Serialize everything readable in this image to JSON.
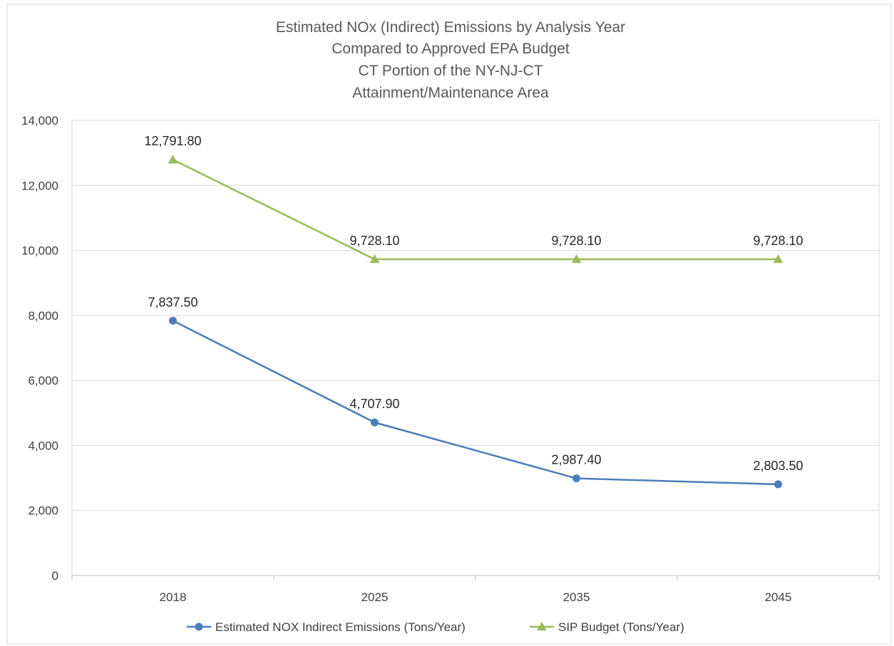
{
  "chart_data": {
    "type": "line",
    "title_lines": [
      "Estimated NOx (Indirect) Emissions by Analysis Year",
      "Compared to Approved EPA Budget",
      "CT Portion of the NY-NJ-CT",
      "Attainment/Maintenance Area"
    ],
    "categories": [
      "2018",
      "2025",
      "2035",
      "2045"
    ],
    "ylim": [
      0,
      14000
    ],
    "yticks": [
      0,
      2000,
      4000,
      6000,
      8000,
      10000,
      12000,
      14000
    ],
    "ytick_labels": [
      "0",
      "2,000",
      "4,000",
      "6,000",
      "8,000",
      "10,000",
      "12,000",
      "14,000"
    ],
    "grid": true,
    "legend_position": "bottom",
    "series": [
      {
        "name": "Estimated NOX Indirect Emissions (Tons/Year)",
        "values": [
          7837.5,
          4707.9,
          2987.4,
          2803.5
        ],
        "labels": [
          "7,837.50",
          "4,707.90",
          "2,987.40",
          "2,803.50"
        ],
        "color": "#4a7ebb",
        "marker": "circle"
      },
      {
        "name": "SIP Budget (Tons/Year)",
        "values": [
          12791.8,
          9728.1,
          9728.1,
          9728.1
        ],
        "labels": [
          "12,791.80",
          "9,728.10",
          "9,728.10",
          "9,728.10"
        ],
        "color": "#9bbb59",
        "marker": "triangle"
      }
    ]
  }
}
